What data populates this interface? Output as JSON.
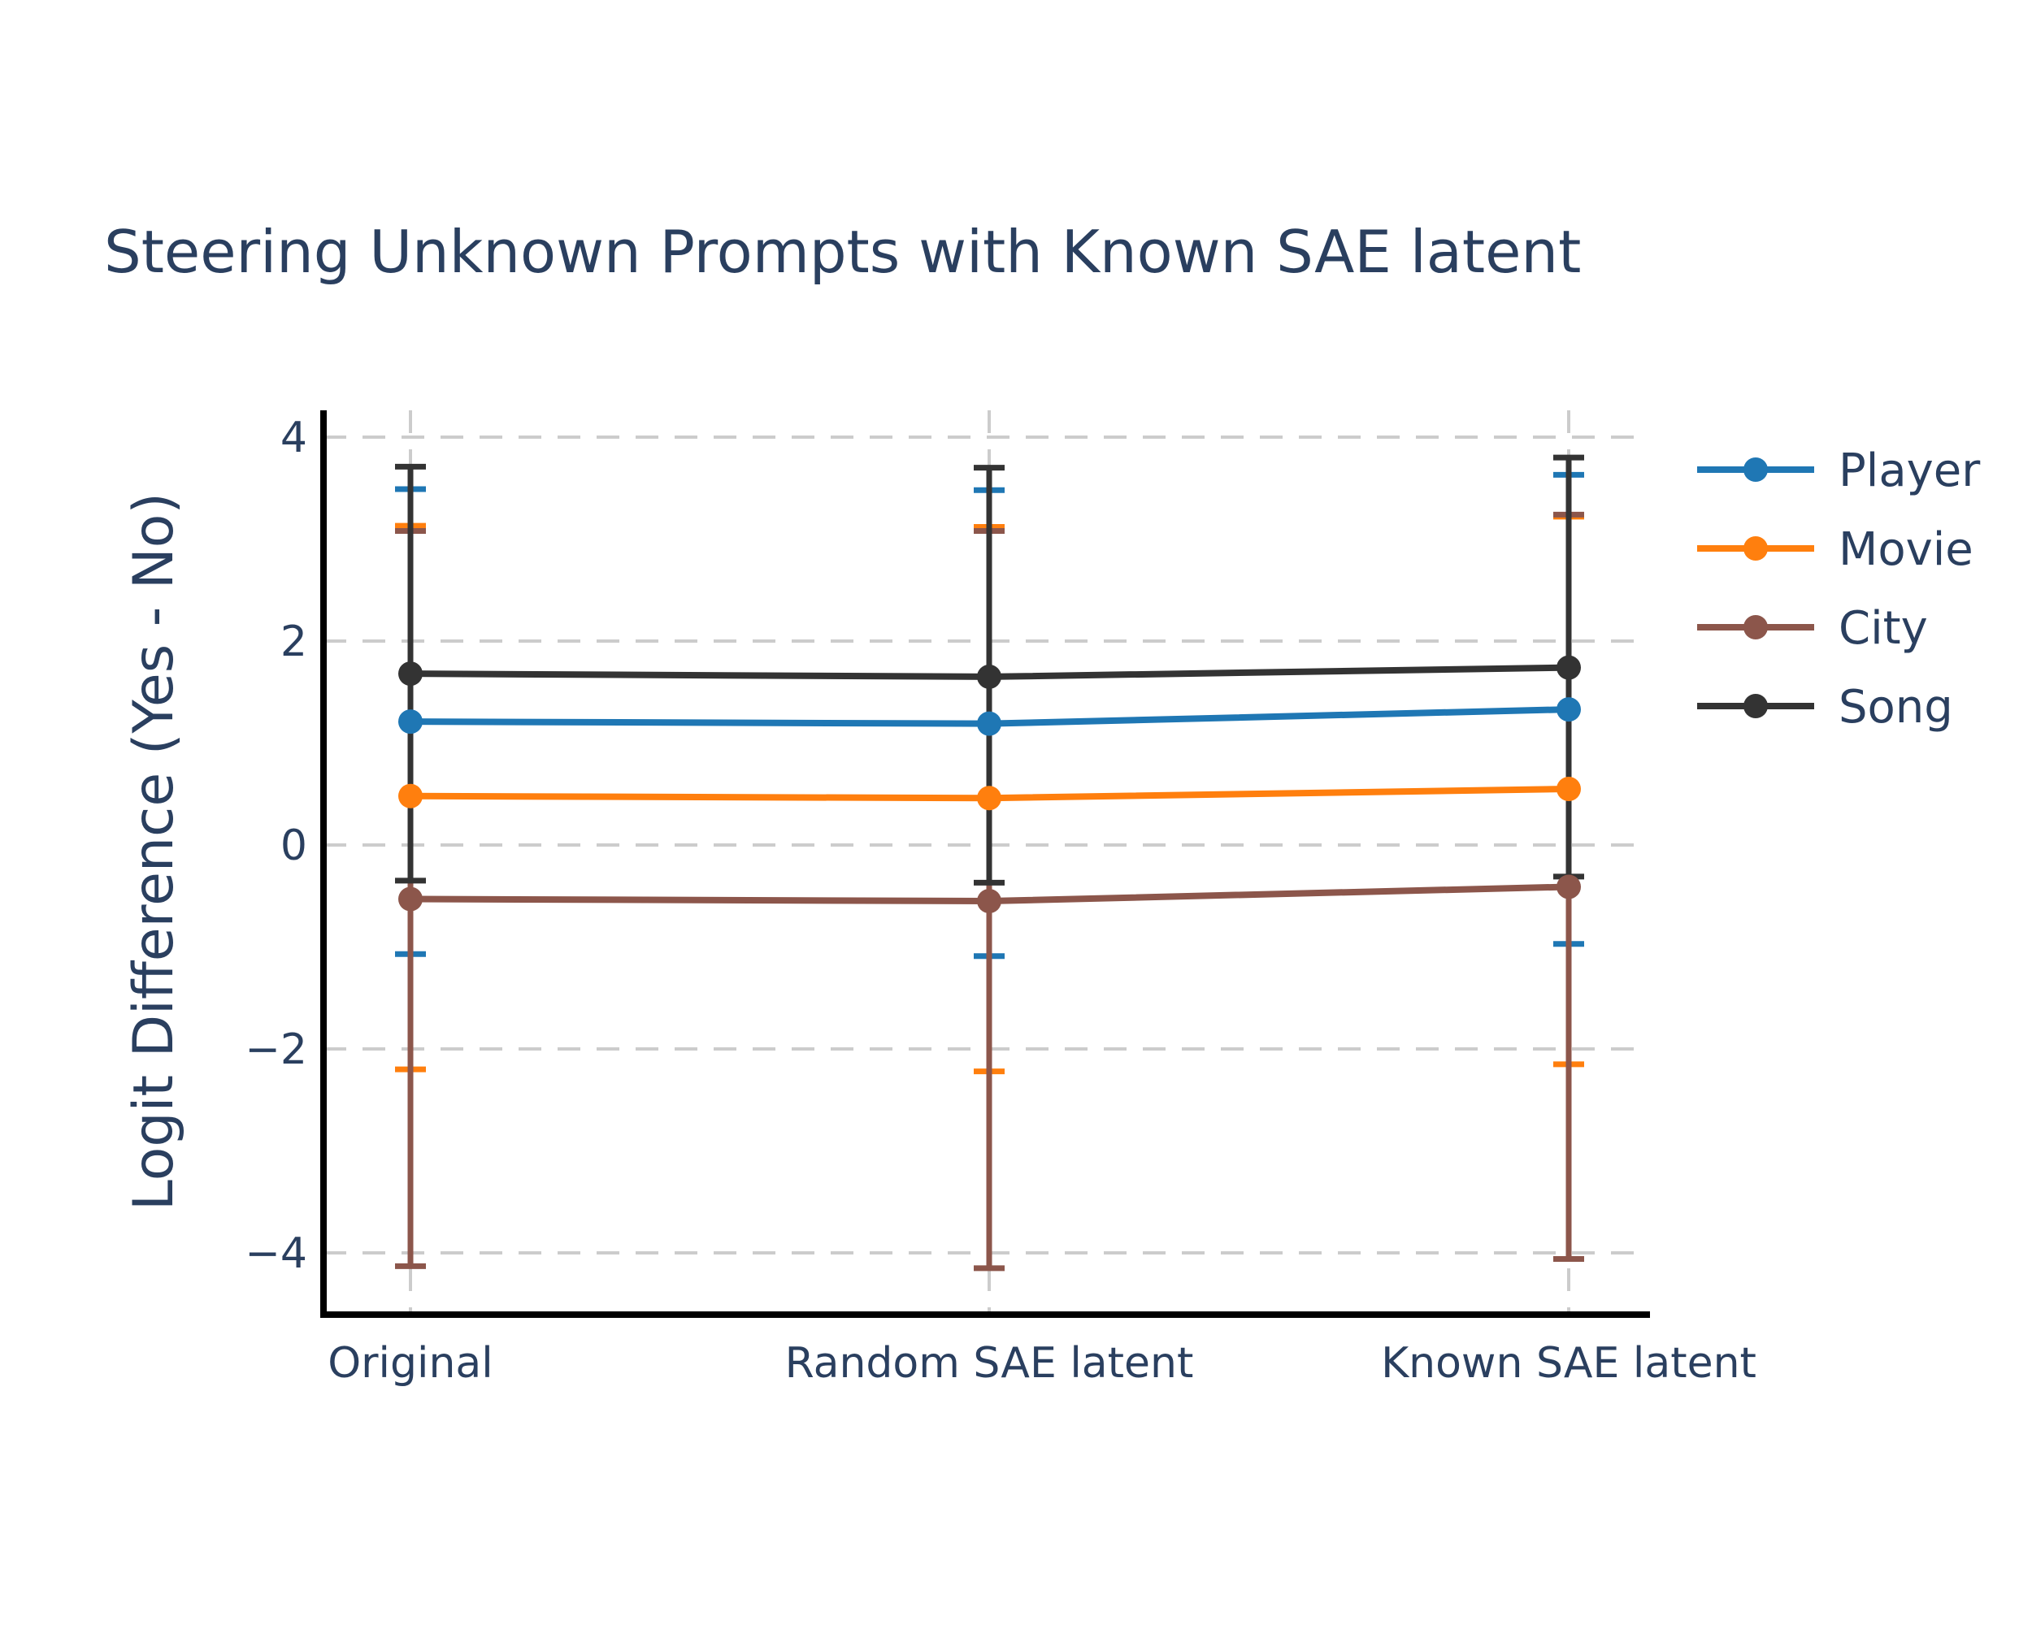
{
  "chart_data": {
    "type": "line",
    "title": "Steering Unknown Prompts with Known SAE latent",
    "xlabel": "",
    "ylabel": "Logit Difference (Yes - No)",
    "categories": [
      "Original",
      "Random SAE latent",
      "Known SAE latent"
    ],
    "ylim": [
      -4.6,
      4.2
    ],
    "yticks": [
      4,
      2,
      0,
      -2,
      -4
    ],
    "ytick_labels": [
      "4",
      "2",
      "0",
      "−2",
      "−4"
    ],
    "grid": true,
    "grid_style": "dashed",
    "legend_position": "top-right",
    "series": [
      {
        "name": "Player",
        "color": "#1f77b4",
        "values": [
          1.21,
          1.19,
          1.33
        ],
        "err_low": [
          -1.07,
          -1.09,
          -0.97
        ],
        "err_high": [
          3.49,
          3.48,
          3.63
        ]
      },
      {
        "name": "Movie",
        "color": "#ff7f0e",
        "values": [
          0.48,
          0.46,
          0.55
        ],
        "err_low": [
          -2.2,
          -2.22,
          -2.15
        ],
        "err_high": [
          3.13,
          3.12,
          3.22
        ]
      },
      {
        "name": "City",
        "color": "#8c564b",
        "values": [
          -0.53,
          -0.55,
          -0.41
        ],
        "err_low": [
          -4.13,
          -4.15,
          -4.06
        ],
        "err_high": [
          3.08,
          3.08,
          3.24
        ]
      },
      {
        "name": "Song",
        "color": "#333333",
        "values": [
          1.68,
          1.65,
          1.74
        ],
        "err_low": [
          -0.35,
          -0.37,
          -0.31
        ],
        "err_high": [
          3.71,
          3.7,
          3.8
        ]
      }
    ]
  }
}
